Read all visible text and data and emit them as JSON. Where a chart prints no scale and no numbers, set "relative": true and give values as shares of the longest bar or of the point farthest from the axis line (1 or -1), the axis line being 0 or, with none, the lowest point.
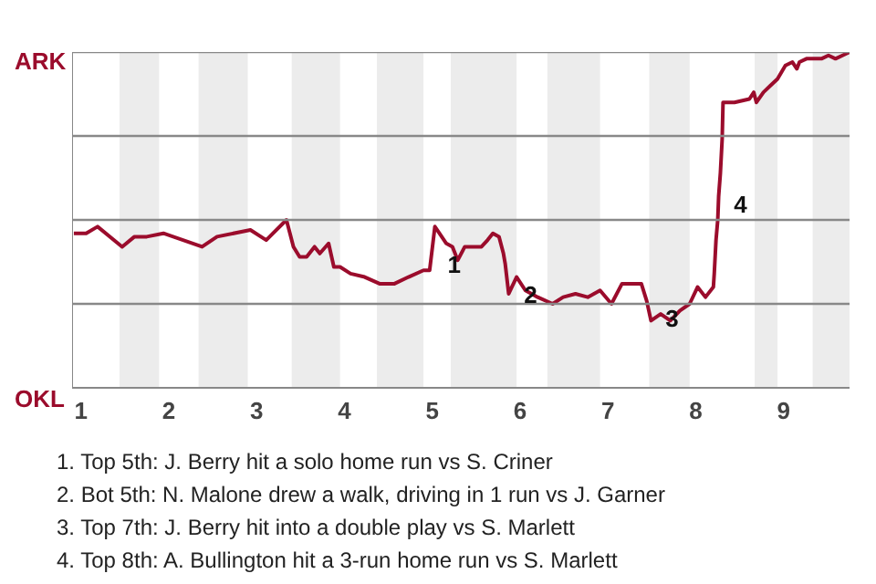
{
  "chart_data": {
    "type": "line",
    "relative": true,
    "x": [
      0.92,
      1.06,
      1.19,
      1.47,
      1.61,
      1.75,
      1.94,
      2.38,
      2.55,
      2.93,
      3.11,
      3.34,
      3.42,
      3.49,
      3.57,
      3.66,
      3.72,
      3.82,
      3.88,
      3.95,
      4.07,
      4.23,
      4.4,
      4.57,
      4.73,
      4.9,
      4.97,
      5.03,
      5.16,
      5.23,
      5.29,
      5.37,
      5.56,
      5.63,
      5.69,
      5.76,
      5.81,
      5.83,
      5.87,
      5.96,
      6.06,
      6.2,
      6.37,
      6.49,
      6.63,
      6.77,
      6.91,
      7.04,
      7.16,
      7.38,
      7.44,
      7.49,
      7.6,
      7.71,
      7.82,
      7.93,
      8.02,
      8.11,
      8.2,
      8.21,
      8.23,
      8.25,
      8.26,
      8.28,
      8.3,
      8.31,
      8.44,
      8.61,
      8.66,
      8.69,
      8.77,
      8.85,
      8.93,
      9.02,
      9.1,
      9.15,
      9.18,
      9.26,
      9.43,
      9.51,
      9.59,
      9.67,
      9.75
    ],
    "series": [
      {
        "color": "#9b0c2c",
        "values": [
          0.46,
          0.46,
          0.48,
          0.42,
          0.45,
          0.45,
          0.46,
          0.42,
          0.45,
          0.47,
          0.44,
          0.5,
          0.42,
          0.39,
          0.39,
          0.42,
          0.4,
          0.43,
          0.36,
          0.36,
          0.34,
          0.33,
          0.31,
          0.31,
          0.33,
          0.35,
          0.35,
          0.48,
          0.43,
          0.42,
          0.38,
          0.42,
          0.42,
          0.44,
          0.46,
          0.45,
          0.4,
          0.37,
          0.28,
          0.33,
          0.29,
          0.27,
          0.25,
          0.27,
          0.28,
          0.27,
          0.29,
          0.25,
          0.31,
          0.31,
          0.26,
          0.2,
          0.22,
          0.2,
          0.23,
          0.25,
          0.3,
          0.27,
          0.3,
          0.34,
          0.44,
          0.5,
          0.57,
          0.64,
          0.74,
          0.85,
          0.85,
          0.86,
          0.88,
          0.85,
          0.88,
          0.9,
          0.92,
          0.96,
          0.97,
          0.95,
          0.97,
          0.98,
          0.98,
          0.99,
          0.98,
          0.99,
          1.0
        ]
      }
    ],
    "xlim": [
      0.9,
      9.75
    ],
    "xticks": [
      1,
      2,
      3,
      4,
      5,
      6,
      7,
      8,
      9
    ],
    "marker": "none",
    "line_style": "solid",
    "ref_lines": [
      {
        "axis": "y",
        "value": 0.25,
        "label": null,
        "color": "#888888"
      },
      {
        "axis": "y",
        "value": 0.5,
        "label": null,
        "color": "#888888"
      },
      {
        "axis": "y",
        "value": 0.75,
        "label": null,
        "color": "#888888"
      },
      {
        "axis": "y",
        "value": 1,
        "label": null,
        "color": "#888888"
      }
    ],
    "bands": [
      {
        "axis": "x",
        "from": 1.44,
        "to": 1.89,
        "label": null,
        "color": "#ececec"
      },
      {
        "axis": "x",
        "from": 2.34,
        "to": 2.9,
        "label": null,
        "color": "#ececec"
      },
      {
        "axis": "x",
        "from": 3.4,
        "to": 3.95,
        "label": null,
        "color": "#ececec"
      },
      {
        "axis": "x",
        "from": 4.37,
        "to": 4.9,
        "label": null,
        "color": "#ececec"
      },
      {
        "axis": "x",
        "from": 5.21,
        "to": 5.96,
        "label": null,
        "color": "#ececec"
      },
      {
        "axis": "x",
        "from": 6.31,
        "to": 6.91,
        "label": null,
        "color": "#ececec"
      },
      {
        "axis": "x",
        "from": 7.47,
        "to": 7.93,
        "label": null,
        "color": "#ececec"
      },
      {
        "axis": "x",
        "from": 8.67,
        "to": 8.93,
        "label": null,
        "color": "#ececec"
      },
      {
        "axis": "x",
        "from": 9.33,
        "to": 9.75,
        "label": null,
        "color": "#ececec"
      }
    ],
    "annotations": [
      "ARK",
      "OKL",
      {
        "text": "1",
        "x": 5.05,
        "y": 0.38
      },
      {
        "text": "2",
        "x": 5.92,
        "y": 0.29
      },
      {
        "text": "3",
        "x": 7.53,
        "y": 0.22
      },
      {
        "text": "4",
        "x": 8.31,
        "y": 0.56
      },
      "1. Top 5th: J. Berry hit a solo home run vs S. Criner",
      "2. Bot 5th: N. Malone drew a walk, driving in 1 run vs J. Garner",
      "3. Top 7th: J. Berry hit into a double play vs S. Marlett",
      "4. Top 8th: A. Bullington hit a 3-run home run vs S. Marlett"
    ]
  }
}
